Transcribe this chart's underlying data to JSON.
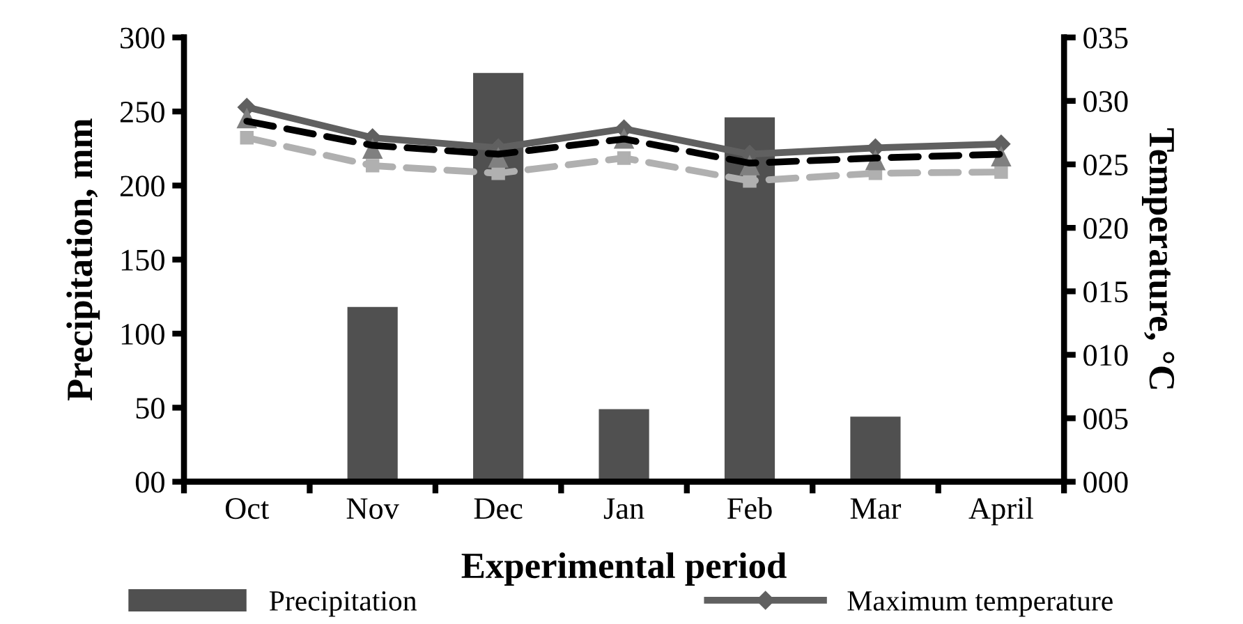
{
  "chart_data": {
    "type": "bar",
    "xlabel": "Experimental period",
    "ylabel": "Precipitation, mm",
    "y2label": "Temperature, °C",
    "categories": [
      "Oct",
      "Nov",
      "Dec",
      "Jan",
      "Feb",
      "Mar",
      "April"
    ],
    "series": [
      {
        "name": "Precipitation",
        "color": "#505050",
        "values": [
          0,
          118,
          276,
          49,
          246,
          44,
          0
        ]
      },
      {
        "name": "Maximum temperature",
        "type": "line",
        "axis": "y2",
        "color": "#606060",
        "marker": "diamond",
        "line_style": "solid",
        "values": [
          29.5,
          27.1,
          26.3,
          27.8,
          25.8,
          26.3,
          26.6
        ]
      },
      {
        "type": "line",
        "axis": "y2",
        "color": "#b0b0b0",
        "marker": "square",
        "line_style": "dashed",
        "values": [
          27.1,
          24.9,
          24.3,
          25.5,
          23.7,
          24.3,
          24.4
        ]
      },
      {
        "type": "scatter",
        "axis": "y2",
        "color": "#808080",
        "marker": "triangle",
        "values": [
          28.6,
          26.2,
          25.5,
          27.0,
          24.9,
          25.3,
          25.6
        ]
      },
      {
        "type": "line",
        "axis": "y2",
        "color": "#000000",
        "marker": "none",
        "line_style": "dashed",
        "values": [
          28.4,
          26.5,
          25.8,
          27.0,
          25.1,
          25.5,
          25.8
        ]
      }
    ],
    "ylim": [
      0,
      300
    ],
    "yticks": [
      {
        "value": 0,
        "label": "00"
      },
      50,
      100,
      150,
      200,
      250,
      300
    ],
    "y2lim": [
      0,
      35
    ],
    "y2ticks": [
      {
        "value": 0,
        "label": "000"
      },
      {
        "value": 5,
        "label": "005"
      },
      {
        "value": 10,
        "label": "010"
      },
      {
        "value": 15,
        "label": "015"
      },
      {
        "value": 20,
        "label": "020"
      },
      {
        "value": 25,
        "label": "025"
      },
      {
        "value": 30,
        "label": "030"
      },
      {
        "value": 35,
        "label": "035"
      }
    ],
    "grid": false,
    "legend": "bottom"
  }
}
